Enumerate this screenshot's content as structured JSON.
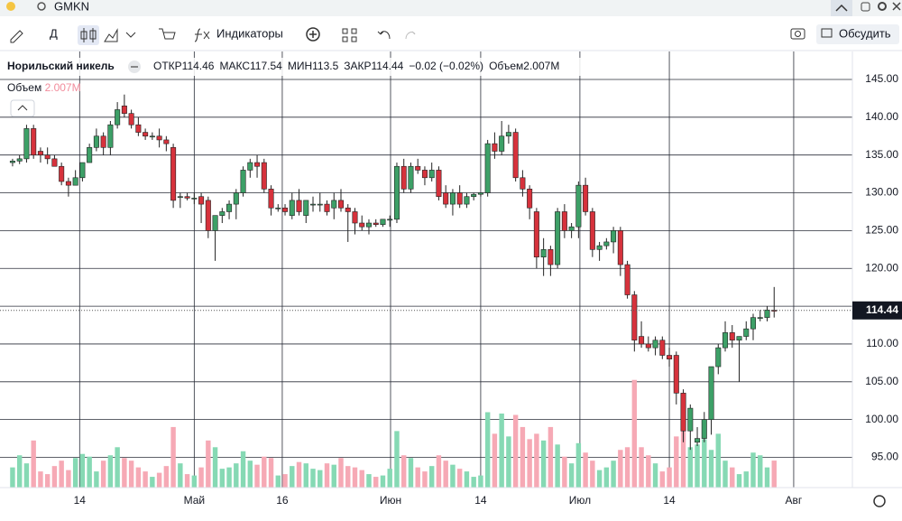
{
  "app": {
    "ticker": "GMKN",
    "interval": "Д",
    "indicators": "Индикаторы",
    "discuss": "Обсудить"
  },
  "chart_data": {
    "type": "candlestick",
    "title": "Норильский никель",
    "legend": {
      "open": "ОТКР",
      "high": "МАКС",
      "low": "МИН",
      "close": "ЗАКР",
      "change": "−0.02 (−0.02%)",
      "volume": "Объем",
      "volume_value": "2.007M"
    },
    "up_color": "#3da067",
    "down_color": "#d6323c",
    "volume_up_color": "#86d9b4",
    "volume_down_color": "#f6a9b5",
    "open": [
      134.0,
      134.2,
      134.5,
      138.5,
      135.5,
      135,
      134.5,
      133.5,
      131.5,
      131,
      132,
      134,
      136,
      137.5,
      136,
      139,
      141.5,
      140.5,
      139,
      138,
      137.5,
      137.5,
      137,
      136,
      129.5,
      129.5,
      129.3,
      129.5,
      129,
      125,
      127,
      127.5,
      128.5,
      130,
      133,
      134,
      134,
      130.5,
      128,
      128,
      127,
      129,
      127,
      128.5,
      128.5,
      128.5,
      128,
      129,
      128,
      127.5,
      126,
      125.5,
      126,
      125.8,
      126.5,
      126.5,
      133.5,
      130.5,
      133.5,
      133,
      132,
      133,
      130,
      128.5,
      130,
      128.5,
      129.5,
      129.8,
      130,
      136.5,
      135.5,
      137.5,
      138,
      132,
      130.5,
      127.5,
      121.5,
      122.5,
      120.5,
      127.5,
      125,
      125.5,
      131,
      127.5,
      122.5,
      123,
      123.5,
      125,
      120.5,
      116.5,
      111,
      110,
      109.5,
      110.5,
      108.5,
      108.5,
      103.5,
      98.5,
      97,
      97.5,
      100,
      107,
      109.5,
      111.5,
      110.5,
      111,
      112,
      113.5,
      113.5,
      114.46
    ],
    "high": [
      134.5,
      135,
      139,
      139,
      136,
      136,
      135,
      134,
      132,
      133,
      134,
      136.5,
      138.5,
      138,
      139.5,
      142,
      143,
      141,
      140,
      138.5,
      138,
      138.5,
      137.5,
      136.5,
      130,
      130,
      130,
      130,
      129.5,
      127,
      128,
      129,
      130.5,
      133.5,
      134.5,
      135,
      134.5,
      131,
      128.5,
      128.5,
      130,
      130.5,
      129,
      129.5,
      130,
      129,
      130,
      130.5,
      128.5,
      128,
      127,
      126.5,
      126.5,
      126.5,
      127,
      134,
      134.5,
      134,
      134.5,
      133.5,
      134,
      133.5,
      131,
      130.5,
      131,
      130,
      130,
      130,
      137,
      138,
      139.5,
      139,
      138.5,
      133,
      131,
      128,
      124,
      123,
      128,
      128.5,
      126,
      131.5,
      132,
      128,
      123.5,
      124,
      125.5,
      125.5,
      121,
      117,
      113,
      111,
      111,
      111,
      109.5,
      109,
      104,
      102,
      99,
      101,
      107,
      110,
      113,
      112.5,
      111,
      113,
      114,
      114.5,
      115,
      117.54
    ],
    "low": [
      133.5,
      133.8,
      134,
      134.5,
      134,
      133.8,
      133.5,
      131,
      129.5,
      131,
      131.5,
      134,
      135.5,
      135,
      135,
      138.5,
      140,
      138.5,
      137.5,
      137,
      137,
      136,
      135.5,
      128,
      128,
      129,
      128.5,
      126,
      124,
      121,
      126,
      126.5,
      126.5,
      129.5,
      132,
      132,
      130,
      127,
      127.5,
      127,
      126.5,
      127,
      126,
      127.5,
      127.5,
      127,
      126.5,
      127.5,
      123.5,
      124.5,
      125,
      124.5,
      125.5,
      125.5,
      125.5,
      126,
      130,
      130,
      132.5,
      131,
      131.5,
      129,
      128,
      127,
      128,
      128,
      129,
      129.5,
      129.5,
      134.5,
      135,
      136.5,
      131.5,
      129.5,
      126.5,
      120,
      119,
      119,
      120,
      124,
      124,
      124,
      127,
      121.5,
      121,
      122.5,
      122,
      119,
      116,
      109,
      109.5,
      109,
      108.5,
      108,
      107,
      102,
      97,
      96,
      96.5,
      97,
      98,
      106,
      109,
      109.5,
      105,
      110.5,
      110.5,
      113,
      113,
      113.5
    ],
    "close": [
      134.2,
      134.5,
      138.5,
      135,
      135,
      134.5,
      133.5,
      131.5,
      131,
      132,
      134,
      136,
      137.5,
      136,
      139,
      141,
      140.5,
      139,
      138,
      137.5,
      137.5,
      137,
      136.5,
      129,
      129.5,
      129.3,
      129.3,
      128.5,
      125,
      127,
      127.5,
      128.5,
      130,
      133,
      134,
      133.5,
      130.5,
      128,
      128,
      127.5,
      129,
      127.5,
      129,
      128.5,
      128.5,
      127.5,
      129,
      128,
      127.5,
      126,
      125.5,
      126,
      125.8,
      126.5,
      126.5,
      133.5,
      130.5,
      133.5,
      133,
      132,
      133,
      129.5,
      128.5,
      130,
      128.5,
      129.5,
      129.8,
      130,
      136.5,
      135.5,
      137.5,
      138,
      132,
      130.5,
      128,
      121.5,
      122.5,
      120.5,
      127.5,
      125,
      125.5,
      131,
      127.5,
      122.5,
      123,
      123.5,
      125,
      120.5,
      116.5,
      110.5,
      110,
      109.5,
      110.5,
      108.5,
      108,
      103.5,
      98.5,
      101.5,
      97.5,
      100,
      107,
      109.5,
      111.5,
      110.5,
      111,
      112,
      113.5,
      113.5,
      114.5,
      114.44
    ],
    "volume": [
      1.5,
      2.4,
      1.8,
      3.5,
      1.2,
      1.0,
      1.6,
      2.0,
      1.3,
      2.2,
      2.5,
      2.3,
      1.2,
      2.0,
      2.4,
      3.0,
      2.2,
      2.0,
      1.5,
      1.2,
      0.8,
      1.1,
      1.6,
      4.5,
      1.8,
      1.0,
      0.9,
      1.5,
      3.5,
      3.0,
      1.4,
      1.5,
      1.8,
      2.7,
      2.0,
      1.7,
      2.3,
      2.2,
      0.9,
      1.0,
      1.6,
      1.9,
      1.8,
      1.4,
      1.3,
      1.8,
      1.7,
      2.2,
      1.6,
      1.5,
      1.3,
      1.0,
      0.8,
      0.9,
      1.4,
      4.2,
      2.4,
      2.2,
      1.5,
      1.2,
      1.6,
      2.4,
      2.0,
      1.7,
      1.4,
      1.2,
      0.8,
      0.9,
      5.6,
      4.0,
      5.5,
      3.8,
      5.4,
      4.5,
      3.6,
      4.0,
      3.5,
      4.5,
      3.2,
      2.3,
      1.8,
      3.3,
      2.6,
      2.0,
      1.3,
      1.5,
      2.0,
      2.8,
      3.0,
      8.0,
      3.0,
      2.4,
      1.8,
      1.2,
      1.5,
      3.8,
      4.2,
      3.0,
      3.2,
      3.6,
      2.8,
      4.0,
      2.0,
      1.5,
      1.0,
      1.2,
      2.6,
      2.4,
      1.5,
      2.007
    ],
    "xlim": [
      -1.8,
      120.2
    ],
    "xticks": [
      {
        "value": 9.6,
        "label": "14"
      },
      {
        "value": 26.0,
        "label": "Май"
      },
      {
        "value": 38.6,
        "label": "16"
      },
      {
        "value": 54.1,
        "label": "Июн"
      },
      {
        "value": 67.0,
        "label": "14"
      },
      {
        "value": 81.2,
        "label": "Июл"
      },
      {
        "value": 94.0,
        "label": "14"
      },
      {
        "value": 111.8,
        "label": "Авг"
      }
    ],
    "ylim": [
      91,
      148.7
    ],
    "yticks": [
      {
        "value": 95,
        "label": "95.00"
      },
      {
        "value": 100,
        "label": "100.00"
      },
      {
        "value": 105,
        "label": "105.00"
      },
      {
        "value": 110,
        "label": "110.00"
      },
      {
        "value": 115,
        "label": "115.00"
      },
      {
        "value": 120,
        "label": "120.00"
      },
      {
        "value": 125,
        "label": "125.00"
      },
      {
        "value": 130,
        "label": "130.00"
      },
      {
        "value": 135,
        "label": "135.00"
      },
      {
        "value": 140,
        "label": "140.00"
      },
      {
        "value": 145,
        "label": "145.00"
      }
    ],
    "volume_lim": [
      0,
      32.4
    ],
    "grid": true
  }
}
